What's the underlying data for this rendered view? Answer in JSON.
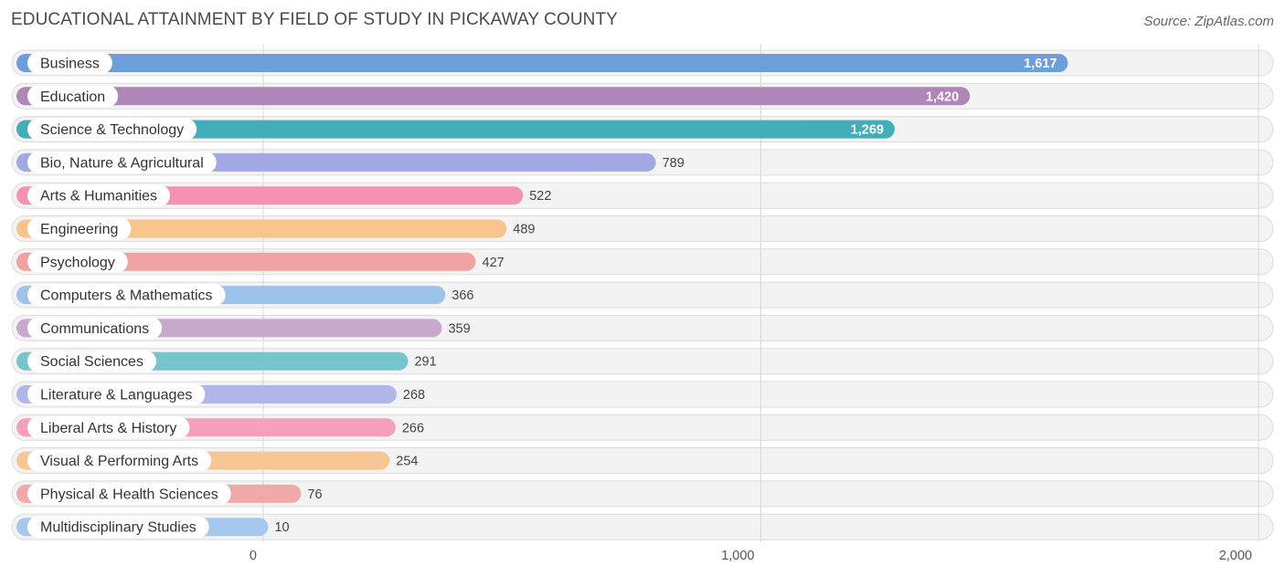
{
  "header": {
    "title": "EDUCATIONAL ATTAINMENT BY FIELD OF STUDY IN PICKAWAY COUNTY",
    "source": "Source: ZipAtlas.com"
  },
  "chart_data": {
    "type": "bar",
    "orientation": "horizontal",
    "title": "EDUCATIONAL ATTAINMENT BY FIELD OF STUDY IN PICKAWAY COUNTY",
    "xlabel": "",
    "ylabel": "",
    "xlim": [
      0,
      2000
    ],
    "ticks": [
      0,
      1000,
      2000
    ],
    "tick_labels": [
      "0",
      "1,000",
      "2,000"
    ],
    "categories": [
      "Business",
      "Education",
      "Science & Technology",
      "Bio, Nature & Agricultural",
      "Arts & Humanities",
      "Engineering",
      "Psychology",
      "Computers & Mathematics",
      "Communications",
      "Social Sciences",
      "Literature & Languages",
      "Liberal Arts & History",
      "Visual & Performing Arts",
      "Physical & Health Sciences",
      "Multidisciplinary Studies"
    ],
    "values": [
      1617,
      1420,
      1269,
      789,
      522,
      489,
      427,
      366,
      359,
      291,
      268,
      266,
      254,
      76,
      10
    ],
    "value_labels": [
      "1,617",
      "1,420",
      "1,269",
      "789",
      "522",
      "489",
      "427",
      "366",
      "359",
      "291",
      "268",
      "266",
      "254",
      "76",
      "10"
    ],
    "colors": [
      "#6a9fdc",
      "#b085b8",
      "#41aeb8",
      "#a1a8e4",
      "#f592b2",
      "#f8c38d",
      "#eea3a1",
      "#9dc3eb",
      "#c8a8cc",
      "#74c6cc",
      "#b1b6e8",
      "#f6a0bb",
      "#f8c694",
      "#f0a9a8",
      "#a7c8ee"
    ]
  }
}
